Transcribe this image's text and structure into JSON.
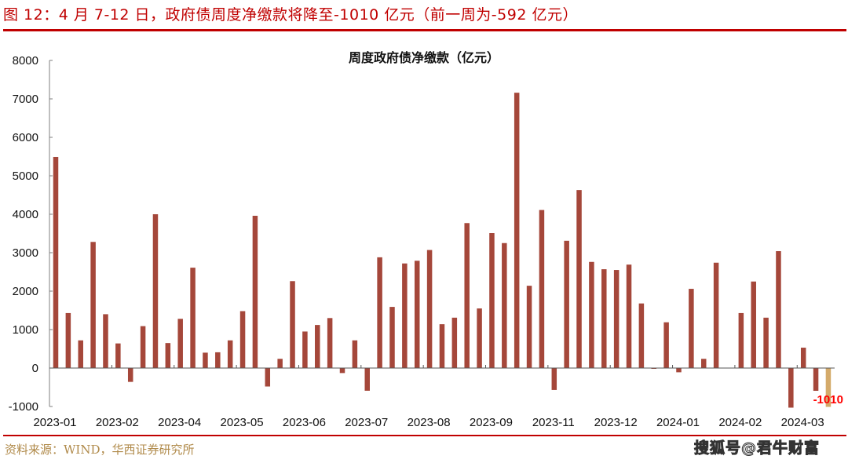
{
  "figure": {
    "title": "图 12：4 月 7-12 日，政府债周度净缴款将降至-1010 亿元（前一周为-592 亿元）",
    "source": "资料来源：WIND，华西证券研究所",
    "watermark": "搜狐号@君牛财富"
  },
  "colors": {
    "accent": "#c00000",
    "bar": "#a5473a",
    "highlight_bar": "#d4aa6a",
    "data_label": "#ff0000",
    "source_text": "#b08a4a"
  },
  "chart_data": {
    "type": "bar",
    "title": "周度政府债净缴款（亿元）",
    "xlabel": "",
    "ylabel": "",
    "ylim": [
      -1000,
      8000
    ],
    "yticks": [
      -1000,
      0,
      1000,
      2000,
      3000,
      4000,
      5000,
      6000,
      7000,
      8000
    ],
    "xtick_labels": [
      "2023-01",
      "2023-02",
      "2023-04",
      "2023-05",
      "2023-06",
      "2023-07",
      "2023-08",
      "2023-09",
      "2023-11",
      "2023-12",
      "2024-01",
      "2024-02",
      "2024-03"
    ],
    "xtick_positions": [
      0,
      5,
      10,
      15,
      20,
      25,
      30,
      35,
      40,
      45,
      50,
      55,
      60
    ],
    "grid": false,
    "legend": null,
    "series": [
      {
        "name": "周度政府债净缴款",
        "values": [
          5490,
          1430,
          720,
          3280,
          1400,
          640,
          -360,
          1090,
          4000,
          650,
          1280,
          2610,
          400,
          410,
          720,
          1480,
          3960,
          -480,
          240,
          2260,
          950,
          1120,
          1300,
          -130,
          720,
          -590,
          2880,
          1590,
          2720,
          2790,
          3070,
          1140,
          1310,
          3770,
          1550,
          3510,
          3250,
          7160,
          2140,
          4110,
          -570,
          3310,
          4630,
          2760,
          2570,
          2550,
          2690,
          1680,
          -20,
          1190,
          -110,
          2060,
          240,
          2740,
          0,
          1430,
          2250,
          1310,
          3040,
          -1030,
          530,
          -592,
          -1010
        ]
      }
    ],
    "highlight_index": 62,
    "annotations": [
      {
        "index": 62,
        "text": "-1010"
      }
    ]
  }
}
